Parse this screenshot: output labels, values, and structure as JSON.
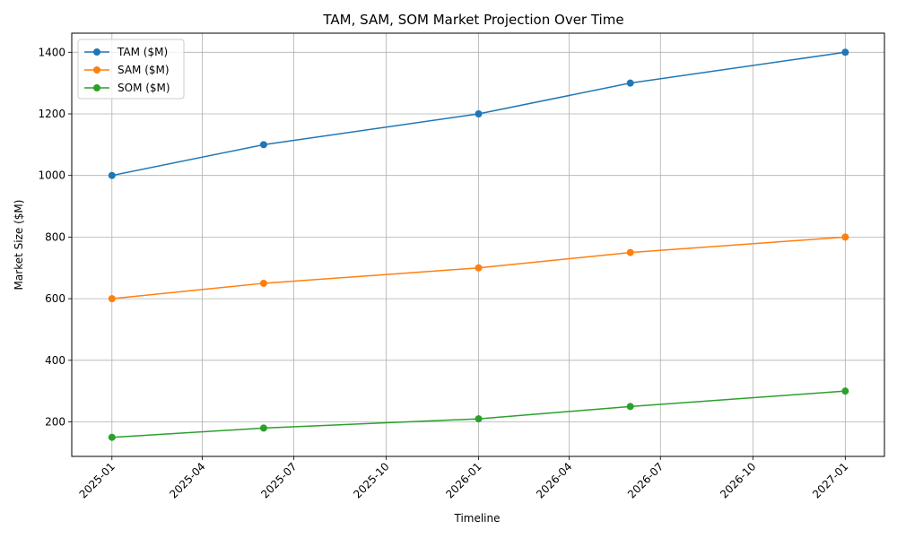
{
  "chart_data": {
    "type": "line",
    "title": "TAM, SAM, SOM Market Projection Over Time",
    "xlabel": "Timeline",
    "ylabel": "Market Size ($M)",
    "x": [
      "2025-01-01",
      "2025-06-01",
      "2026-01-01",
      "2026-06-01",
      "2027-01-01"
    ],
    "xlim": [
      "2024-11-22",
      "2027-02-09"
    ],
    "ylim": [
      88,
      1462
    ],
    "x_ticks": [
      "2025-01",
      "2025-04",
      "2025-07",
      "2025-10",
      "2026-01",
      "2026-04",
      "2026-07",
      "2026-10",
      "2027-01"
    ],
    "y_ticks": [
      200,
      400,
      600,
      800,
      1000,
      1200,
      1400
    ],
    "grid": true,
    "legend_position": "top-left",
    "series": [
      {
        "name": "TAM ($M)",
        "color": "#1f77b4",
        "values": [
          1000,
          1100,
          1200,
          1300,
          1400
        ]
      },
      {
        "name": "SAM ($M)",
        "color": "#ff7f0e",
        "values": [
          600,
          650,
          700,
          750,
          800
        ]
      },
      {
        "name": "SOM ($M)",
        "color": "#2ca02c",
        "values": [
          150,
          180,
          210,
          250,
          300
        ]
      }
    ]
  }
}
